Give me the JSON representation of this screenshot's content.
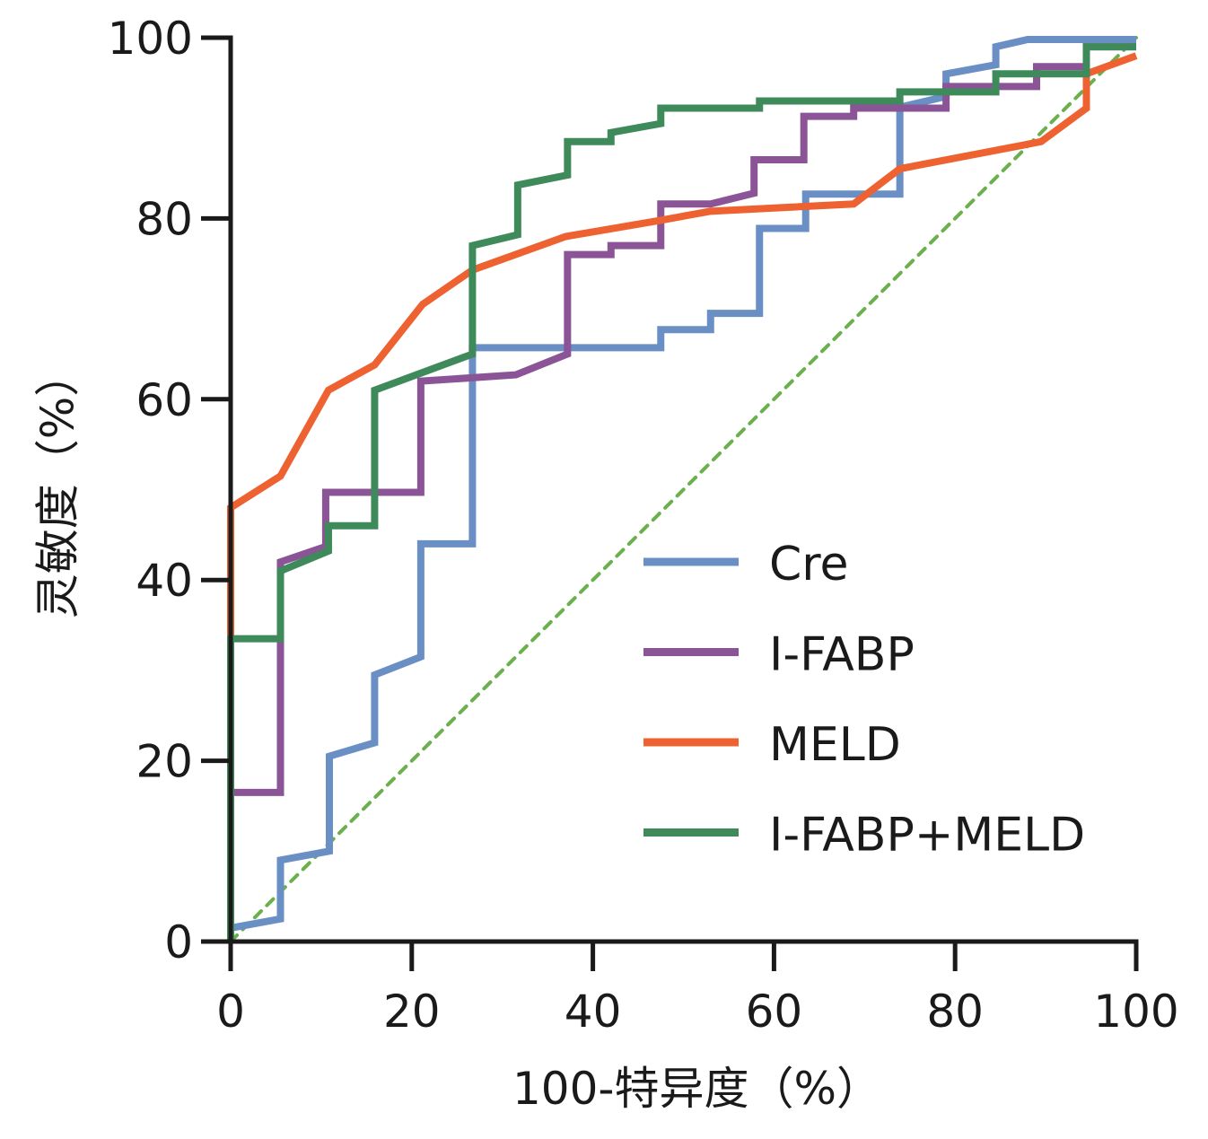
{
  "chart_data": {
    "type": "line",
    "title": "",
    "xlabel": "100-特异度（%）",
    "ylabel": "灵敏度（%）",
    "xlim": [
      0,
      100
    ],
    "ylim": [
      0,
      100
    ],
    "xticks": [
      0,
      20,
      40,
      60,
      80,
      100
    ],
    "yticks": [
      0,
      20,
      40,
      60,
      80,
      100
    ],
    "xtick_labels": [
      "0",
      "20",
      "40",
      "60",
      "80",
      "100"
    ],
    "ytick_labels": [
      "0",
      "20",
      "40",
      "60",
      "80",
      "100"
    ],
    "grid": false,
    "legend_position": "bottom-right",
    "reference_line": {
      "name": "reference-diagonal",
      "style": "dashed",
      "color": "#6ab04c",
      "points": [
        [
          0,
          0
        ],
        [
          100,
          100
        ]
      ]
    },
    "series": [
      {
        "name": "Cre",
        "color": "#6a8fc4",
        "points": [
          [
            0,
            1.5
          ],
          [
            5.5,
            2.5
          ],
          [
            5.5,
            9
          ],
          [
            10.9,
            10
          ],
          [
            10.9,
            20.5
          ],
          [
            15.9,
            22
          ],
          [
            15.9,
            29.5
          ],
          [
            21,
            31.5
          ],
          [
            21,
            44
          ],
          [
            26.7,
            44
          ],
          [
            26.7,
            65.7
          ],
          [
            47.5,
            65.7
          ],
          [
            47.5,
            67.7
          ],
          [
            53,
            67.7
          ],
          [
            53,
            69.5
          ],
          [
            58.4,
            69.5
          ],
          [
            58.4,
            78.9
          ],
          [
            63.5,
            78.9
          ],
          [
            63.5,
            82.7
          ],
          [
            73.9,
            82.7
          ],
          [
            73.9,
            92.3
          ],
          [
            79,
            93.5
          ],
          [
            79,
            96
          ],
          [
            84.5,
            97
          ],
          [
            84.5,
            99
          ],
          [
            88,
            99.8
          ],
          [
            100,
            99.8
          ]
        ]
      },
      {
        "name": "I-FABP",
        "color": "#8b5496",
        "points": [
          [
            0,
            16.5
          ],
          [
            5.5,
            16.5
          ],
          [
            5.5,
            42
          ],
          [
            10.5,
            43.7
          ],
          [
            10.5,
            49.7
          ],
          [
            21,
            49.7
          ],
          [
            21,
            62
          ],
          [
            31.5,
            62.7
          ],
          [
            37.2,
            65
          ],
          [
            37.2,
            76
          ],
          [
            42,
            76
          ],
          [
            42,
            77
          ],
          [
            47.5,
            77
          ],
          [
            47.5,
            81.6
          ],
          [
            53,
            81.6
          ],
          [
            57.8,
            82.8
          ],
          [
            57.8,
            86.5
          ],
          [
            63.3,
            86.5
          ],
          [
            63.3,
            91.3
          ],
          [
            68.8,
            91.3
          ],
          [
            68.8,
            92.2
          ],
          [
            79,
            92.2
          ],
          [
            79,
            94.6
          ],
          [
            89,
            94.6
          ],
          [
            89,
            96.8
          ],
          [
            94.5,
            96.8
          ],
          [
            94.5,
            99
          ],
          [
            100,
            99
          ]
        ]
      },
      {
        "name": "MELD",
        "color": "#ee6232",
        "points": [
          [
            0,
            33.5
          ],
          [
            0,
            48
          ],
          [
            5.5,
            51.5
          ],
          [
            10.8,
            61
          ],
          [
            15.9,
            63.8
          ],
          [
            21.2,
            70.5
          ],
          [
            26.7,
            74.3
          ],
          [
            37,
            78
          ],
          [
            47.5,
            79.8
          ],
          [
            53,
            80.8
          ],
          [
            68.8,
            81.6
          ],
          [
            73.9,
            85.5
          ],
          [
            89.5,
            88.5
          ],
          [
            94.5,
            92.2
          ],
          [
            94.5,
            96
          ],
          [
            100,
            98
          ]
        ]
      },
      {
        "name": "I-FABP+MELD",
        "color": "#3f8a5a",
        "points": [
          [
            0,
            0
          ],
          [
            0,
            33.5
          ],
          [
            5.5,
            33.5
          ],
          [
            5.5,
            41
          ],
          [
            10.8,
            43.2
          ],
          [
            10.8,
            46
          ],
          [
            15.9,
            46
          ],
          [
            15.9,
            61
          ],
          [
            26.7,
            65
          ],
          [
            26.7,
            77
          ],
          [
            31.7,
            78.2
          ],
          [
            31.7,
            83.7
          ],
          [
            37.2,
            84.8
          ],
          [
            37.2,
            88.5
          ],
          [
            42,
            88.5
          ],
          [
            42,
            89.5
          ],
          [
            47.5,
            90.5
          ],
          [
            47.5,
            92.2
          ],
          [
            58.4,
            92.2
          ],
          [
            58.4,
            93
          ],
          [
            73.9,
            93
          ],
          [
            73.9,
            94
          ],
          [
            84.5,
            94
          ],
          [
            84.5,
            96
          ],
          [
            94.5,
            96
          ],
          [
            94.5,
            99
          ],
          [
            100,
            99
          ]
        ]
      }
    ]
  }
}
